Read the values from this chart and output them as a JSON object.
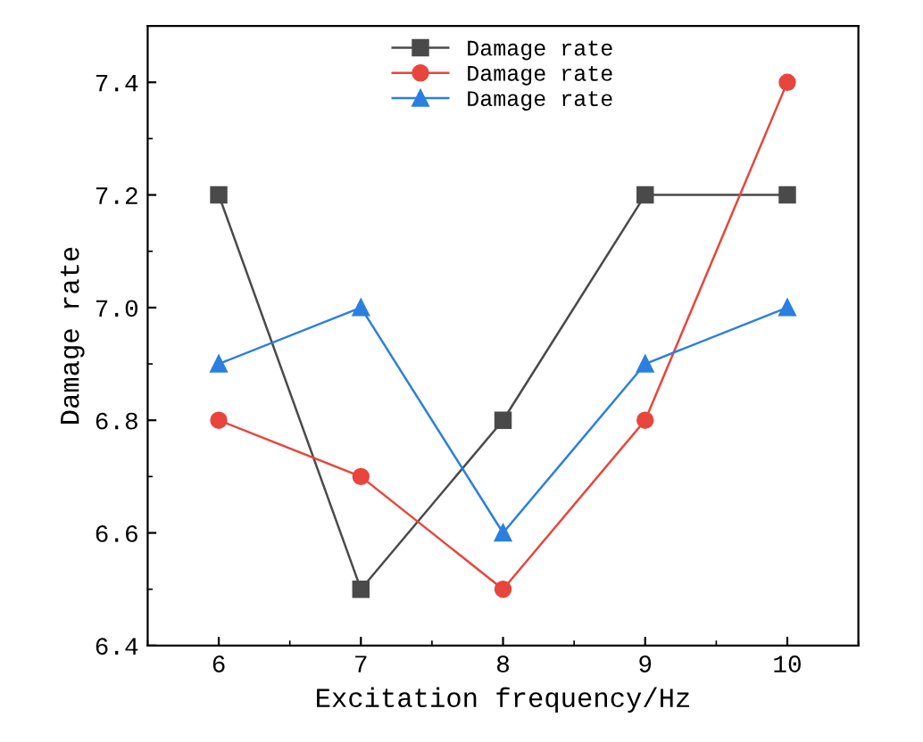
{
  "chart_data": {
    "type": "line",
    "xlabel": "Excitation frequency/Hz",
    "ylabel": "Damage rate",
    "x": [
      6,
      7,
      8,
      9,
      10
    ],
    "series": [
      {
        "name": "Damage rate",
        "color": "#4a4a4a",
        "marker": "square",
        "values": [
          7.2,
          6.5,
          6.8,
          7.2,
          7.2
        ]
      },
      {
        "name": "Damage rate",
        "color": "#e8453c",
        "marker": "circle",
        "values": [
          6.8,
          6.7,
          6.5,
          6.8,
          7.4
        ]
      },
      {
        "name": "Damage rate",
        "color": "#2a7fe0",
        "marker": "triangle",
        "values": [
          6.9,
          7.0,
          6.6,
          6.9,
          7.0
        ]
      }
    ],
    "xlim": [
      5.5,
      10.5
    ],
    "ylim": [
      6.4,
      7.5
    ],
    "xticks": [
      6,
      7,
      8,
      9,
      10
    ],
    "yticks": [
      {
        "value": 6.4,
        "label": "6.4"
      },
      {
        "value": 6.6,
        "label": "6.6"
      },
      {
        "value": 6.8,
        "label": "6.8"
      },
      {
        "value": 7.0,
        "label": "7.0"
      },
      {
        "value": 7.2,
        "label": "7.2"
      },
      {
        "value": 7.4,
        "label": "7.4"
      }
    ],
    "legend": "top",
    "grid": false,
    "line_style": "solid"
  }
}
